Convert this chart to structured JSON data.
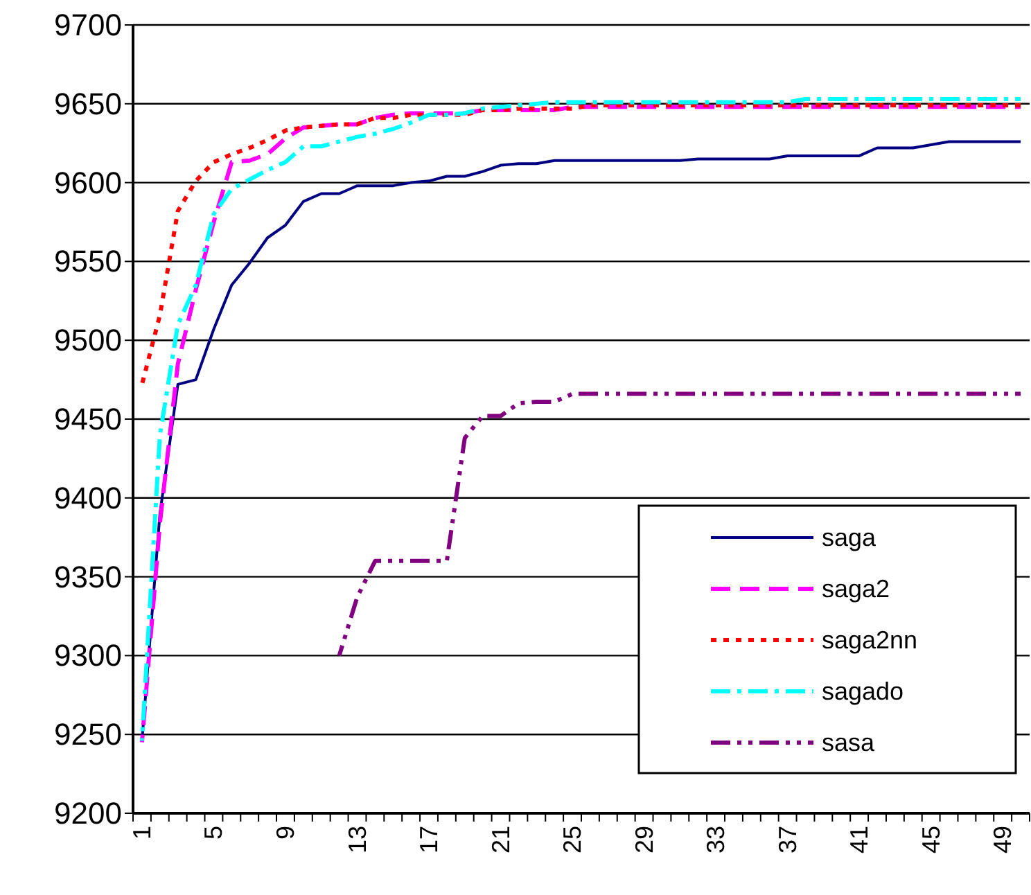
{
  "chart_data": {
    "type": "line",
    "categories": [
      "1",
      null,
      null,
      null,
      "5",
      null,
      null,
      null,
      "9",
      null,
      null,
      null,
      "13",
      null,
      null,
      null,
      "17",
      null,
      null,
      null,
      "21",
      null,
      null,
      null,
      "25",
      null,
      null,
      null,
      "29",
      null,
      null,
      null,
      "33",
      null,
      null,
      null,
      "37",
      null,
      null,
      null,
      "41",
      null,
      null,
      null,
      "45",
      null,
      null,
      null,
      "49",
      null
    ],
    "ylim": [
      9200,
      9700
    ],
    "yticks": [
      9200,
      9250,
      9300,
      9350,
      9400,
      9450,
      9500,
      9550,
      9600,
      9650,
      9700
    ],
    "grid": "y",
    "legend": "right",
    "marker": "none",
    "series": [
      {
        "name": "saga",
        "color": "#000080",
        "line_style": "solid",
        "values": [
          9246,
          9390,
          9472,
          9475,
          9507,
          9535,
          9549,
          9565,
          9573,
          9588,
          9593,
          9593,
          9598,
          9598,
          9598,
          9600,
          9601,
          9604,
          9604,
          9607,
          9611,
          9612,
          9612,
          9614,
          9614,
          9614,
          9614,
          9614,
          9614,
          9614,
          9614,
          9615,
          9615,
          9615,
          9615,
          9615,
          9617,
          9617,
          9617,
          9617,
          9617,
          9622,
          9622,
          9622,
          9624,
          9626,
          9626,
          9626,
          9626,
          9626
        ]
      },
      {
        "name": "saga2",
        "color": "#ff00ff",
        "line_style": "dashed",
        "values": [
          9245,
          9384,
          9485,
          9532,
          9575,
          9613,
          9614,
          9618,
          9628,
          9635,
          9636,
          9637,
          9637,
          9641,
          9643,
          9644,
          9644,
          9644,
          9644,
          9646,
          9646,
          9646,
          9646,
          9646,
          9648,
          9648,
          9648,
          9648,
          9648,
          9648,
          9648,
          9648,
          9648,
          9648,
          9648,
          9648,
          9648,
          9648,
          9648,
          9648,
          9648,
          9648,
          9648,
          9648,
          9648,
          9648,
          9648,
          9648,
          9648,
          9648
        ]
      },
      {
        "name": "saga2nn",
        "color": "#ff0000",
        "line_style": "dotted",
        "values": [
          9472,
          9516,
          9582,
          9601,
          9613,
          9618,
          9622,
          9627,
          9633,
          9635,
          9636,
          9637,
          9637,
          9641,
          9641,
          9643,
          9643,
          9643,
          9643,
          9646,
          9646,
          9647,
          9647,
          9647,
          9647,
          9649,
          9649,
          9649,
          9649,
          9649,
          9649,
          9649,
          9649,
          9649,
          9649,
          9649,
          9649,
          9649,
          9649,
          9649,
          9649,
          9649,
          9649,
          9649,
          9649,
          9649,
          9649,
          9649,
          9649,
          9649
        ]
      },
      {
        "name": "sagado",
        "color": "#00ffff",
        "line_style": "dashdot",
        "values": [
          9246,
          9440,
          9510,
          9535,
          9580,
          9596,
          9602,
          9608,
          9613,
          9623,
          9623,
          9626,
          9629,
          9631,
          9634,
          9638,
          9643,
          9643,
          9644,
          9647,
          9648,
          9649,
          9650,
          9651,
          9651,
          9651,
          9651,
          9651,
          9651,
          9651,
          9651,
          9651,
          9651,
          9651,
          9651,
          9651,
          9651,
          9653,
          9653,
          9653,
          9653,
          9653,
          9653,
          9653,
          9653,
          9653,
          9653,
          9653,
          9653,
          9653
        ]
      },
      {
        "name": "sasa",
        "color": "#800080",
        "line_style": "dashdotdot",
        "values": [
          null,
          null,
          null,
          null,
          null,
          null,
          null,
          null,
          null,
          null,
          null,
          9300,
          9337,
          9360,
          9360,
          9360,
          9360,
          9360,
          9438,
          9452,
          9452,
          9460,
          9461,
          9461,
          9466,
          9466,
          9466,
          9466,
          9466,
          9466,
          9466,
          9466,
          9466,
          9466,
          9466,
          9466,
          9466,
          9466,
          9466,
          9466,
          9466,
          9466,
          9466,
          9466,
          9466,
          9466,
          9466,
          9466,
          9466,
          9466
        ]
      }
    ]
  }
}
